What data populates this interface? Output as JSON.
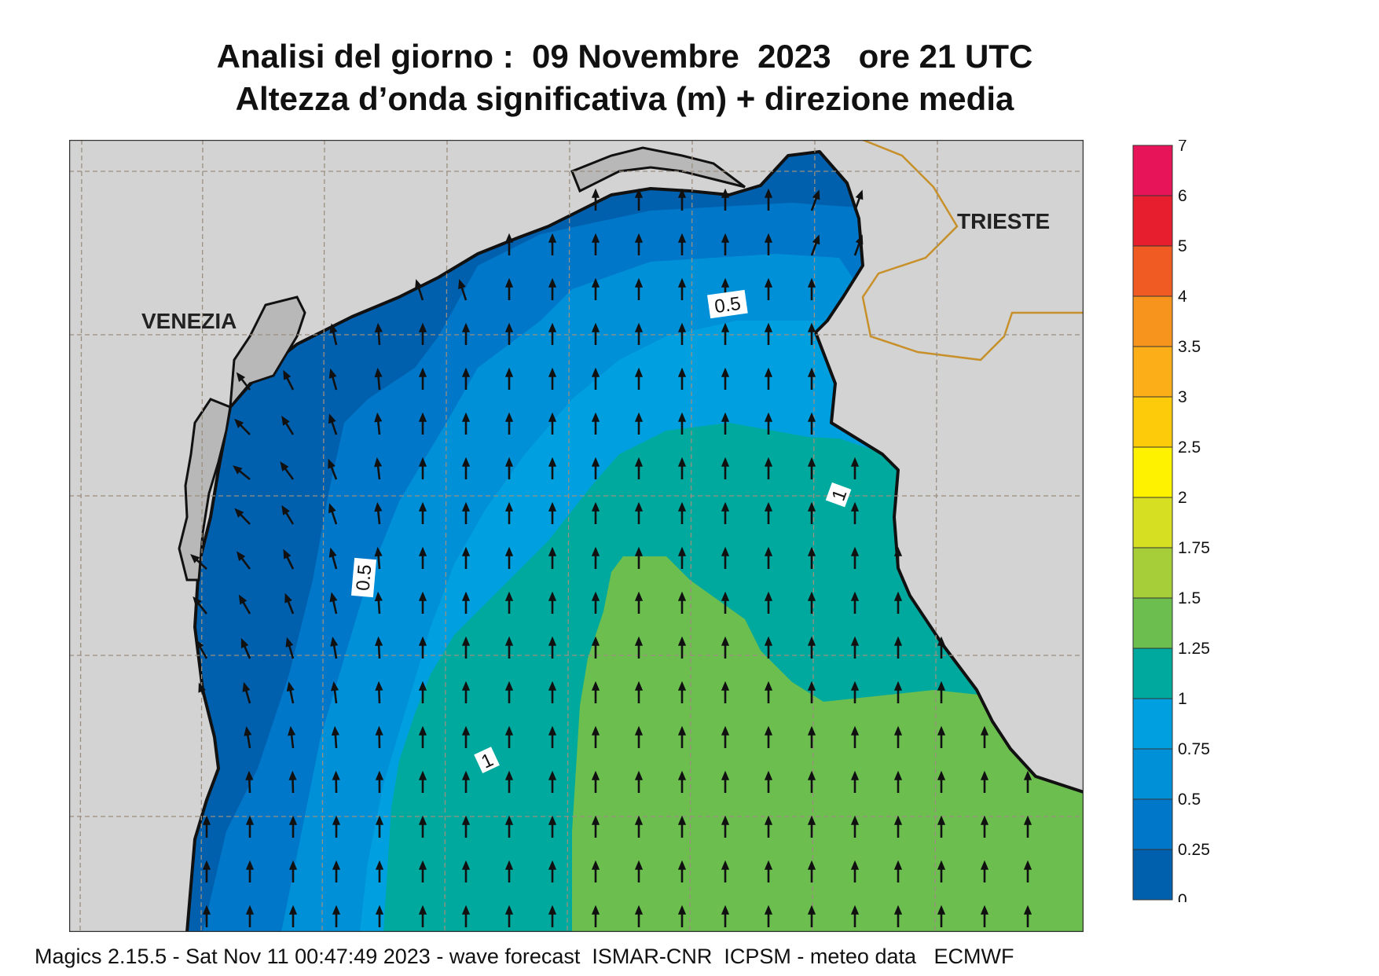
{
  "title": {
    "line1": "Analisi del giorno :  09 Novembre  2023   ore 21 UTC",
    "line2": "Altezza d’onda significativa (m) + direzione media"
  },
  "map": {
    "cities": [
      {
        "id": "venezia",
        "name": "VENEZIA"
      },
      {
        "id": "trieste",
        "name": "TRIESTE"
      }
    ],
    "contour_labels": [
      "0.5",
      "0.5",
      "1",
      "1"
    ]
  },
  "legend": {
    "bins": [
      {
        "label": "7",
        "color": "#e8145a"
      },
      {
        "label": "6",
        "color": "#e61e2e"
      },
      {
        "label": "5",
        "color": "#f05a23"
      },
      {
        "label": "4",
        "color": "#f7941d"
      },
      {
        "label": "3.5",
        "color": "#fbae17"
      },
      {
        "label": "3",
        "color": "#fecb0a"
      },
      {
        "label": "2.5",
        "color": "#fff200"
      },
      {
        "label": "2",
        "color": "#d7df23"
      },
      {
        "label": "1.75",
        "color": "#a6ce39"
      },
      {
        "label": "1.5",
        "color": "#6cbe4f"
      },
      {
        "label": "1.25",
        "color": "#00a99d"
      },
      {
        "label": "1",
        "color": "#00a0e0"
      },
      {
        "label": "0.75",
        "color": "#0090d8"
      },
      {
        "label": "0.5",
        "color": "#0077c8"
      },
      {
        "label": "0.25",
        "color": "#0060ae"
      }
    ],
    "bottom_label": "0"
  },
  "colors": {
    "land": "#d3d3d3",
    "land_dark": "#b8b8b8",
    "sea_025": "#0060ae",
    "sea_05": "#0077c8",
    "sea_075": "#0090d8",
    "sea_1": "#00a0e0",
    "sea_125": "#00a99d",
    "sea_15": "#6cbe4f",
    "border": "#c8902a",
    "grid": "#9b8f80"
  },
  "footer": "Magics 2.15.5 - Sat Nov 11 00:47:49 2023 - wave forecast  ISMAR-CNR  ICPSM - meteo data   ECMWF"
}
